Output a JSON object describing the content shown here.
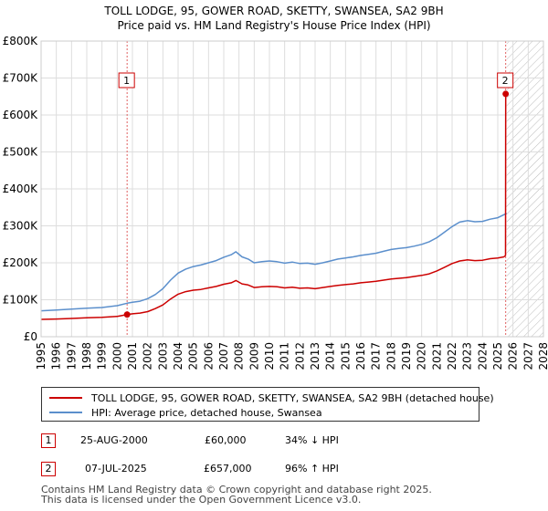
{
  "chart_data": {
    "type": "line",
    "title": "TOLL LODGE, 95, GOWER ROAD, SKETTY, SWANSEA, SA2 9BH",
    "subtitle": "Price paid vs. HM Land Registry's House Price Index (HPI)",
    "xlim": [
      1995,
      2028
    ],
    "ylim": [
      0,
      800000
    ],
    "x_ticks": [
      1995,
      1996,
      1997,
      1998,
      1999,
      2000,
      2001,
      2002,
      2003,
      2004,
      2005,
      2006,
      2007,
      2008,
      2009,
      2010,
      2011,
      2012,
      2013,
      2014,
      2015,
      2016,
      2017,
      2018,
      2019,
      2020,
      2021,
      2022,
      2023,
      2024,
      2025,
      2026,
      2027,
      2028
    ],
    "y_ticks": [
      {
        "value": 0,
        "label": "£0"
      },
      {
        "value": 100000,
        "label": "£100K"
      },
      {
        "value": 200000,
        "label": "£200K"
      },
      {
        "value": 300000,
        "label": "£300K"
      },
      {
        "value": 400000,
        "label": "£400K"
      },
      {
        "value": 500000,
        "label": "£500K"
      },
      {
        "value": 600000,
        "label": "£600K"
      },
      {
        "value": 700000,
        "label": "£700K"
      },
      {
        "value": 800000,
        "label": "£800K"
      }
    ],
    "grid": true,
    "forecast_start": 2025.58,
    "colors": {
      "property": "#cc0000",
      "hpi": "#5b8fcc",
      "sale_line": "#e06060"
    },
    "series": [
      {
        "name": "TOLL LODGE, 95, GOWER ROAD, SKETTY, SWANSEA, SA2 9BH (detached house)",
        "color": "#cc0000",
        "points": [
          [
            1995.0,
            47000
          ],
          [
            1996.0,
            48000
          ],
          [
            1997.0,
            49500
          ],
          [
            1998.0,
            51000
          ],
          [
            1999.0,
            52500
          ],
          [
            2000.0,
            55000
          ],
          [
            2000.65,
            60000
          ],
          [
            2001.0,
            62000
          ],
          [
            2001.5,
            64000
          ],
          [
            2002.0,
            68000
          ],
          [
            2002.5,
            76000
          ],
          [
            2003.0,
            86000
          ],
          [
            2003.5,
            102000
          ],
          [
            2004.0,
            115000
          ],
          [
            2004.5,
            122000
          ],
          [
            2005.0,
            126000
          ],
          [
            2005.5,
            128000
          ],
          [
            2006.0,
            132000
          ],
          [
            2006.5,
            136000
          ],
          [
            2007.0,
            142000
          ],
          [
            2007.5,
            146000
          ],
          [
            2007.8,
            152000
          ],
          [
            2008.2,
            143000
          ],
          [
            2008.6,
            140000
          ],
          [
            2009.0,
            133000
          ],
          [
            2009.5,
            135000
          ],
          [
            2010.0,
            136000
          ],
          [
            2010.5,
            135000
          ],
          [
            2011.0,
            132000
          ],
          [
            2011.5,
            134000
          ],
          [
            2012.0,
            131000
          ],
          [
            2012.5,
            132000
          ],
          [
            2013.0,
            130000
          ],
          [
            2013.5,
            133000
          ],
          [
            2014.0,
            136000
          ],
          [
            2014.5,
            139000
          ],
          [
            2015.0,
            141000
          ],
          [
            2015.5,
            143000
          ],
          [
            2016.0,
            146000
          ],
          [
            2016.5,
            148000
          ],
          [
            2017.0,
            150000
          ],
          [
            2017.5,
            153000
          ],
          [
            2018.0,
            156000
          ],
          [
            2018.5,
            158000
          ],
          [
            2019.0,
            160000
          ],
          [
            2019.5,
            163000
          ],
          [
            2020.0,
            166000
          ],
          [
            2020.5,
            170000
          ],
          [
            2021.0,
            178000
          ],
          [
            2021.5,
            188000
          ],
          [
            2022.0,
            198000
          ],
          [
            2022.5,
            205000
          ],
          [
            2023.0,
            208000
          ],
          [
            2023.5,
            206000
          ],
          [
            2024.0,
            207000
          ],
          [
            2024.5,
            211000
          ],
          [
            2025.0,
            213000
          ],
          [
            2025.4,
            216000
          ],
          [
            2025.51,
            220000
          ],
          [
            2025.52,
            657000
          ],
          [
            2025.58,
            657000
          ]
        ]
      },
      {
        "name": "HPI: Average price, detached house, Swansea",
        "color": "#5b8fcc",
        "points": [
          [
            1995.0,
            70000
          ],
          [
            1996.0,
            72000
          ],
          [
            1997.0,
            74500
          ],
          [
            1998.0,
            77000
          ],
          [
            1999.0,
            79000
          ],
          [
            2000.0,
            84000
          ],
          [
            2000.65,
            90500
          ],
          [
            2001.0,
            93000
          ],
          [
            2001.5,
            96000
          ],
          [
            2002.0,
            103000
          ],
          [
            2002.5,
            114000
          ],
          [
            2003.0,
            130000
          ],
          [
            2003.5,
            153000
          ],
          [
            2004.0,
            172000
          ],
          [
            2004.5,
            183000
          ],
          [
            2005.0,
            190000
          ],
          [
            2005.5,
            194000
          ],
          [
            2006.0,
            200000
          ],
          [
            2006.5,
            206000
          ],
          [
            2007.0,
            215000
          ],
          [
            2007.5,
            222000
          ],
          [
            2007.8,
            230000
          ],
          [
            2008.2,
            216000
          ],
          [
            2008.6,
            210000
          ],
          [
            2009.0,
            200000
          ],
          [
            2009.5,
            203000
          ],
          [
            2010.0,
            205000
          ],
          [
            2010.5,
            203000
          ],
          [
            2011.0,
            199000
          ],
          [
            2011.5,
            202000
          ],
          [
            2012.0,
            198000
          ],
          [
            2012.5,
            199000
          ],
          [
            2013.0,
            196000
          ],
          [
            2013.5,
            200000
          ],
          [
            2014.0,
            205000
          ],
          [
            2014.5,
            210000
          ],
          [
            2015.0,
            213000
          ],
          [
            2015.5,
            216000
          ],
          [
            2016.0,
            220000
          ],
          [
            2016.5,
            223000
          ],
          [
            2017.0,
            226000
          ],
          [
            2017.5,
            231000
          ],
          [
            2018.0,
            236000
          ],
          [
            2018.5,
            239000
          ],
          [
            2019.0,
            241000
          ],
          [
            2019.5,
            245000
          ],
          [
            2020.0,
            250000
          ],
          [
            2020.5,
            257000
          ],
          [
            2021.0,
            268000
          ],
          [
            2021.5,
            283000
          ],
          [
            2022.0,
            298000
          ],
          [
            2022.5,
            310000
          ],
          [
            2023.0,
            314000
          ],
          [
            2023.5,
            311000
          ],
          [
            2024.0,
            312000
          ],
          [
            2024.5,
            318000
          ],
          [
            2025.0,
            322000
          ],
          [
            2025.4,
            330000
          ],
          [
            2025.58,
            334000
          ]
        ]
      }
    ],
    "annotations": [
      {
        "id": "1",
        "x": 2000.65,
        "y": 60000
      },
      {
        "id": "2",
        "x": 2025.52,
        "y": 657000
      }
    ]
  },
  "legend": {
    "property_label": "TOLL LODGE, 95, GOWER ROAD, SKETTY, SWANSEA, SA2 9BH (detached house)",
    "hpi_label": "HPI: Average price, detached house, Swansea"
  },
  "sales": [
    {
      "id": "1",
      "date": "25-AUG-2000",
      "price": "£60,000",
      "hpi_change": "34% ↓ HPI"
    },
    {
      "id": "2",
      "date": "07-JUL-2025",
      "price": "£657,000",
      "hpi_change": "96% ↑ HPI"
    }
  ],
  "footer": {
    "line1": "Contains HM Land Registry data © Crown copyright and database right 2025.",
    "line2": "This data is licensed under the Open Government Licence v3.0."
  }
}
